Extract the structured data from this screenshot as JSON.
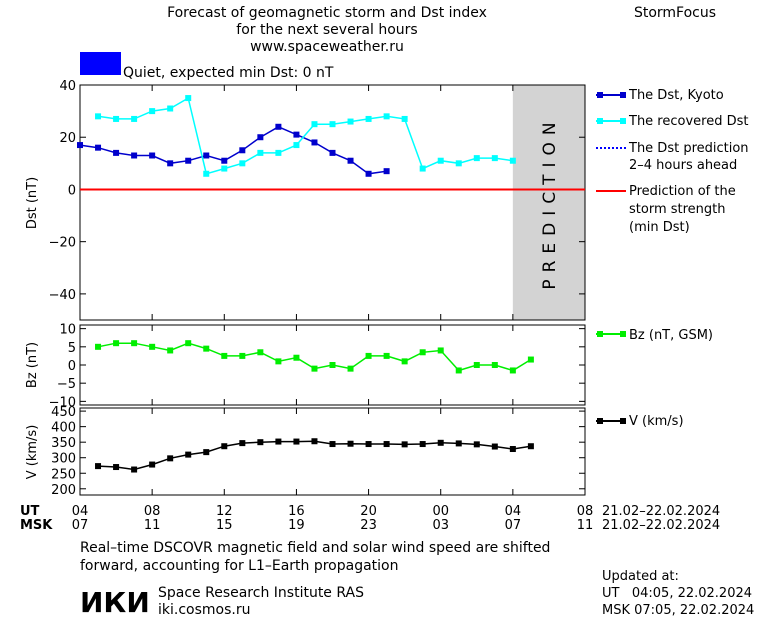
{
  "header": {
    "title_lines": [
      "Forecast of geomagnetic storm and Dst index",
      "for the next several hours",
      "www.spaceweather.ru"
    ],
    "brand": "StormFocus",
    "status_text": "Quiet, expected min Dst: 0 nT",
    "status_color": "#0000ff"
  },
  "prediction_label": "PREDICTION",
  "time_axis": {
    "ut_label": "UT",
    "msk_label": "MSK",
    "ut_ticks": [
      "04",
      "08",
      "12",
      "16",
      "20",
      "00",
      "04",
      "08"
    ],
    "msk_ticks": [
      "07",
      "11",
      "15",
      "19",
      "23",
      "03",
      "07",
      "11"
    ],
    "ut_range": "21.02–22.02.2024",
    "msk_range": "21.02–22.02.2024"
  },
  "legend": {
    "dst_kyoto": "The Dst, Kyoto",
    "dst_recovered": "The recovered Dst",
    "dst_pred_line1": "The Dst prediction",
    "dst_pred_line2": "2–4 hours ahead",
    "storm_line1": "Prediction of the",
    "storm_line2": "storm strength",
    "storm_line3": "(min Dst)",
    "bz": "Bz (nT, GSM)",
    "v": "V (km/s)"
  },
  "footer": {
    "note_line1": "Real–time DSCOVR magnetic field and solar wind speed are shifted",
    "note_line2": "forward, accounting for L1–Earth propagation",
    "institute_logo": "ИКИ",
    "institute_name": "Space Research Institute RAS",
    "institute_url": "iki.cosmos.ru",
    "updated_label": "Updated at:",
    "updated_ut": "UT   04:05, 22.02.2024",
    "updated_msk": "MSK 07:05, 22.02.2024"
  },
  "colors": {
    "dst_kyoto": "#0000cc",
    "dst_recovered": "#00ffff",
    "dst_prediction": "#0000ff",
    "storm_strength": "#ff0000",
    "bz": "#00ee00",
    "v": "#000000",
    "prediction_band": "#d3d3d3"
  },
  "chart_data": [
    {
      "type": "line",
      "xrange_hours": [
        0,
        28
      ],
      "ylabel": "Dst (nT)",
      "ylim": [
        -50,
        40
      ],
      "yticks": [
        40,
        20,
        0,
        -20,
        -40
      ],
      "prediction_start_hour": 24,
      "storm_strength_min_dst": 0,
      "series": [
        {
          "name": "The Dst, Kyoto",
          "x": [
            0,
            1,
            2,
            3,
            4,
            5,
            6,
            7,
            8,
            9,
            10,
            11,
            12,
            13,
            14,
            15,
            16,
            17
          ],
          "y": [
            17,
            16,
            14,
            13,
            13,
            10,
            11,
            13,
            11,
            15,
            20,
            24,
            21,
            18,
            14,
            11,
            6,
            7
          ]
        },
        {
          "name": "The recovered Dst",
          "x": [
            1,
            2,
            3,
            4,
            5,
            6,
            7,
            8,
            9,
            10,
            11,
            12,
            13,
            14,
            15,
            16,
            17,
            18,
            19,
            20,
            21,
            22,
            23,
            24
          ],
          "y": [
            28,
            27,
            27,
            30,
            31,
            35,
            6,
            8,
            10,
            14,
            14,
            17,
            25,
            25,
            26,
            27,
            28,
            27,
            8,
            11,
            10,
            12,
            12,
            11
          ]
        }
      ]
    },
    {
      "type": "line",
      "ylabel": "Bz (nT)",
      "ylim": [
        -11,
        11
      ],
      "yticks": [
        10,
        5,
        0,
        -5,
        -10
      ],
      "series": [
        {
          "name": "Bz (nT, GSM)",
          "x": [
            1,
            2,
            3,
            4,
            5,
            6,
            7,
            8,
            9,
            10,
            11,
            12,
            13,
            14,
            15,
            16,
            17,
            18,
            19,
            20,
            21,
            22,
            23,
            24,
            25
          ],
          "y": [
            5,
            6,
            6,
            5,
            4,
            6,
            4.5,
            2.5,
            2.5,
            3.5,
            1,
            2,
            -1,
            0,
            -1,
            2.5,
            2.5,
            1,
            3.5,
            4,
            -1.5,
            0,
            0,
            -1.5,
            1.5
          ]
        }
      ]
    },
    {
      "type": "line",
      "ylabel": "V (km/s)",
      "ylim": [
        180,
        460
      ],
      "yticks": [
        450,
        400,
        350,
        300,
        250,
        200
      ],
      "series": [
        {
          "name": "V (km/s)",
          "x": [
            1,
            2,
            3,
            4,
            5,
            6,
            7,
            8,
            9,
            10,
            11,
            12,
            13,
            14,
            15,
            16,
            17,
            18,
            19,
            20,
            21,
            22,
            23,
            24,
            25
          ],
          "y": [
            273,
            270,
            262,
            278,
            298,
            310,
            318,
            337,
            347,
            350,
            352,
            352,
            353,
            344,
            345,
            344,
            344,
            343,
            344,
            348,
            346,
            343,
            336,
            328,
            337
          ]
        }
      ]
    }
  ]
}
